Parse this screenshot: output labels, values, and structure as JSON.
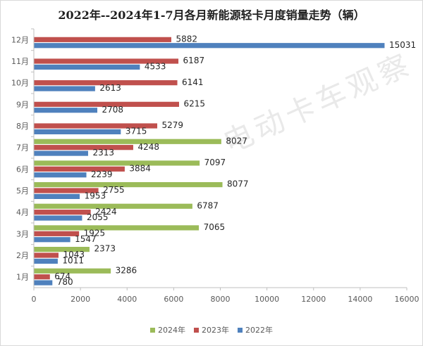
{
  "title": "2022年--2024年1-7月各月新能源轻卡月度销量走势（辆）",
  "watermark": "电动卡车观察",
  "chart_data": {
    "type": "bar",
    "orientation": "horizontal",
    "categories": [
      "1月",
      "2月",
      "3月",
      "4月",
      "5月",
      "6月",
      "7月",
      "8月",
      "9月",
      "10月",
      "11月",
      "12月"
    ],
    "series": [
      {
        "name": "2024年",
        "color": "#9bbb59",
        "values": [
          3286,
          2373,
          7065,
          6787,
          8077,
          7097,
          8027,
          null,
          null,
          null,
          null,
          null
        ]
      },
      {
        "name": "2023年",
        "color": "#c0504d",
        "values": [
          674,
          1043,
          1925,
          2424,
          2755,
          3884,
          4248,
          5279,
          6215,
          6141,
          6187,
          5882
        ]
      },
      {
        "name": "2022年",
        "color": "#4f81bd",
        "values": [
          780,
          1011,
          1547,
          2055,
          1953,
          2239,
          2313,
          3715,
          2708,
          2613,
          4533,
          15031
        ]
      }
    ],
    "xlim": [
      0,
      16000
    ],
    "xticks": [
      0,
      2000,
      4000,
      6000,
      8000,
      10000,
      12000,
      14000,
      16000
    ],
    "grid": false,
    "legend_position": "bottom"
  }
}
